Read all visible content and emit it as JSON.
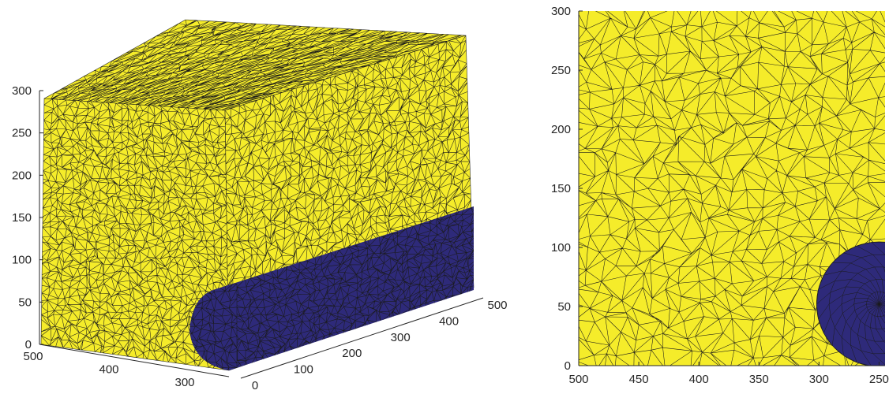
{
  "figure": {
    "colors": {
      "matrix": "#f5ec2a",
      "inclusion": "#2e2a7a",
      "edge": "#1a1a1a",
      "background": "#ffffff"
    }
  },
  "chart_data": [
    {
      "type": "3d-tetrahedral-mesh",
      "title": "",
      "xlabel": "",
      "ylabel": "",
      "zlabel": "",
      "z_ticks": [
        "0",
        "50",
        "100",
        "150",
        "200",
        "250",
        "300"
      ],
      "x_ticks": [
        "500",
        "400",
        "300"
      ],
      "y_ticks": [
        "0",
        "100",
        "200",
        "300",
        "400",
        "500"
      ],
      "zlim": [
        0,
        300
      ],
      "xlim": [
        250,
        500
      ],
      "ylim": [
        0,
        500
      ],
      "grid": false
    },
    {
      "type": "2d-triangular-mesh",
      "title": "",
      "xlabel": "",
      "ylabel": "",
      "x_ticks": [
        "500",
        "450",
        "400",
        "350",
        "300",
        "250"
      ],
      "y_ticks": [
        "0",
        "50",
        "100",
        "150",
        "200",
        "250",
        "300"
      ],
      "xlim": [
        500,
        245
      ],
      "ylim": [
        0,
        300
      ],
      "inclusion_circle": {
        "cx": 250,
        "cy": 52,
        "r": 52
      },
      "grid": false
    }
  ]
}
